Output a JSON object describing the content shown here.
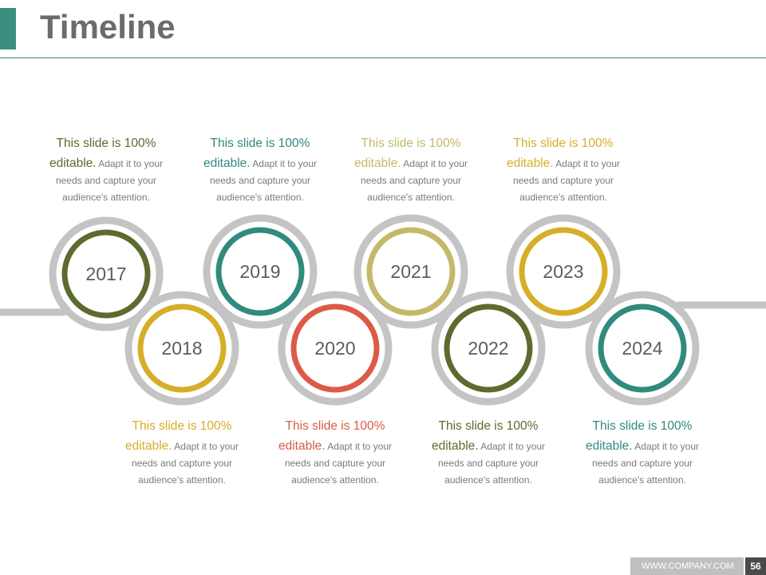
{
  "header": {
    "title": "Timeline"
  },
  "colors": {
    "accent": "#3a8f7e",
    "track": "#c4c4c4"
  },
  "milestones": [
    {
      "year": "2017",
      "color": "#5c6b2e",
      "position": "top",
      "headline": "This slide is 100%",
      "lead": "editable.",
      "detail_1": " Adapt it to your",
      "detail_2": "needs and capture your",
      "detail_3": "audience's attention."
    },
    {
      "year": "2018",
      "color": "#d6ae28",
      "position": "bottom",
      "headline": "This slide is 100%",
      "lead": "editable.",
      "detail_1": " Adapt it to your",
      "detail_2": "needs and capture your",
      "detail_3": "audience's attention."
    },
    {
      "year": "2019",
      "color": "#318a7e",
      "position": "top",
      "headline": "This slide is 100%",
      "lead": "editable.",
      "detail_1": " Adapt it to your",
      "detail_2": "needs and capture your",
      "detail_3": "audience's attention."
    },
    {
      "year": "2020",
      "color": "#dc5b47",
      "position": "bottom",
      "headline": "This slide is 100%",
      "lead": "editable.",
      "detail_1": " Adapt it to your",
      "detail_2": "needs and capture your",
      "detail_3": "audience's attention."
    },
    {
      "year": "2021",
      "color": "#c3b96a",
      "position": "top",
      "headline": "This slide is 100%",
      "lead": "editable.",
      "detail_1": " Adapt it to your",
      "detail_2": "needs and capture your",
      "detail_3": "audience's attention."
    },
    {
      "year": "2022",
      "color": "#5c6b2e",
      "position": "bottom",
      "headline": "This slide is 100%",
      "lead": "editable.",
      "detail_1": " Adapt it to your",
      "detail_2": "needs and capture your",
      "detail_3": "audience's attention."
    },
    {
      "year": "2023",
      "color": "#d6ae28",
      "position": "top",
      "headline": "This slide is 100%",
      "lead": "editable.",
      "detail_1": " Adapt it to your",
      "detail_2": "needs and capture your",
      "detail_3": "audience's attention."
    },
    {
      "year": "2024",
      "color": "#318a7e",
      "position": "bottom",
      "headline": "This slide is 100%",
      "lead": "editable.",
      "detail_1": " Adapt it to your",
      "detail_2": "needs and capture your",
      "detail_3": "audience's attention."
    }
  ],
  "footer": {
    "url": "WWW.COMPANY.COM",
    "page": "56"
  }
}
